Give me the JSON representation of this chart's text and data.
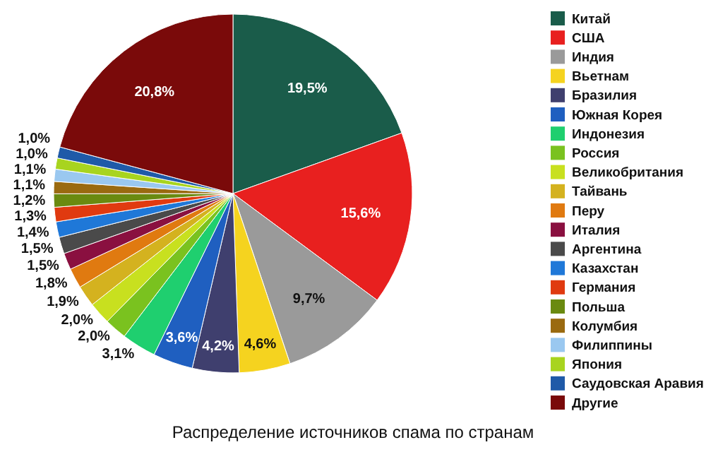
{
  "chart_data": {
    "type": "pie",
    "title": "Распределение источников спама по странам",
    "categories": [
      "Китай",
      "США",
      "Индия",
      "Вьетнам",
      "Бразилия",
      "Южная Корея",
      "Индонезия",
      "Россия",
      "Великобритания",
      "Тайвань",
      "Перу",
      "Италия",
      "Аргентина",
      "Казахстан",
      "Германия",
      "Польша",
      "Колумбия",
      "Филиппины",
      "Япония",
      "Саудовская Аравия",
      "Другие"
    ],
    "values": [
      19.5,
      15.6,
      9.7,
      4.6,
      4.2,
      3.6,
      3.1,
      2.0,
      2.0,
      1.9,
      1.8,
      1.5,
      1.5,
      1.4,
      1.3,
      1.2,
      1.1,
      1.1,
      1.0,
      1.0,
      20.8
    ],
    "value_labels": [
      "19,5%",
      "15,6%",
      "9,7%",
      "4,6%",
      "4,2%",
      "3,6%",
      "3,1%",
      "2,0%",
      "2,0%",
      "1,9%",
      "1,8%",
      "1,5%",
      "1,5%",
      "1,4%",
      "1,3%",
      "1,2%",
      "1,1%",
      "1,1%",
      "1,0%",
      "1,0%",
      "20,8%"
    ],
    "colors": [
      "#1a5c4a",
      "#e8201f",
      "#9a9a9a",
      "#f5d31f",
      "#3f3f6e",
      "#1f5fc0",
      "#1fcf6f",
      "#7ac21f",
      "#c8e01f",
      "#d4b21f",
      "#e07a10",
      "#8a1040",
      "#4a4a4a",
      "#1f78d8",
      "#e03a10",
      "#6a8a10",
      "#9a6a10",
      "#9ac8f0",
      "#a8d41f",
      "#1f5aa8",
      "#7a0a0a"
    ],
    "legend": "right"
  }
}
